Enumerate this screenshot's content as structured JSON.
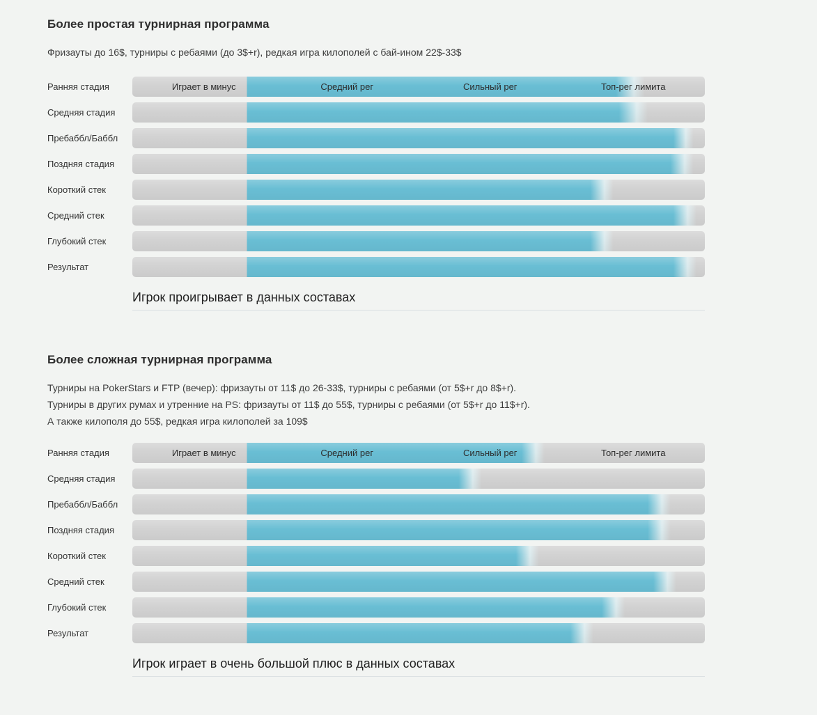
{
  "colors": {
    "fill": "#69bed4",
    "track": "#d2d2d2",
    "fade_mid": "#dcebee",
    "background": "#f2f4f2",
    "divider": "#dadfe2"
  },
  "chart_data": [
    {
      "type": "bar",
      "title": "Более простая турнирная программа",
      "subtitle_lines": [
        "Фризауты до 16$, турниры с ребаями (до 3$+r), редкая игра килополей с бай-ином 22$-33$"
      ],
      "scale_labels": [
        "Играет в минус",
        "Средний рег",
        "Сильный рег",
        "Топ-рег лимита"
      ],
      "categories": [
        "Ранняя стадия",
        "Средняя стадия",
        "Пребаббл/Баббл",
        "Поздняя стадия",
        "Короткий стек",
        "Средний стек",
        "Глубокий стек",
        "Результат"
      ],
      "xlim": [
        0,
        100
      ],
      "series": [
        {
          "name": "skill-range",
          "values": [
            {
              "from": 20,
              "to": 84.5,
              "fade_to": 89.5
            },
            {
              "from": 20,
              "to": 85,
              "fade_to": 90
            },
            {
              "from": 20,
              "to": 94.5,
              "fade_to": 98
            },
            {
              "from": 20,
              "to": 94,
              "fade_to": 98
            },
            {
              "from": 20,
              "to": 80,
              "fade_to": 84
            },
            {
              "from": 20,
              "to": 94.5,
              "fade_to": 98.5
            },
            {
              "from": 20,
              "to": 80,
              "fade_to": 84
            },
            {
              "from": 20,
              "to": 94.5,
              "fade_to": 98.5
            }
          ]
        }
      ],
      "caption": "Игрок проигрывает в данных составах"
    },
    {
      "type": "bar",
      "title": "Более сложная турнирная программа",
      "subtitle_lines": [
        "Турниры на PokerStars и FTP (вечер): фризауты от 11$ до 26-33$, турниры с ребаями (от 5$+r до 8$+r).",
        "Турниры в других румах и утренние на PS: фризауты от 11$ до 55$, турниры с ребаями (от 5$+r до 11$+r).",
        "А также килополя до 55$, редкая игра килополей за 109$"
      ],
      "scale_labels": [
        "Играет в минус",
        "Средний рег",
        "Сильный рег",
        "Топ-рег лимита"
      ],
      "categories": [
        "Ранняя стадия",
        "Средняя стадия",
        "Пребаббл/Баббл",
        "Поздняя стадия",
        "Короткий стек",
        "Средний стек",
        "Глубокий стек",
        "Результат"
      ],
      "xlim": [
        0,
        100
      ],
      "series": [
        {
          "name": "skill-range",
          "values": [
            {
              "from": 20,
              "to": 68,
              "fade_to": 72
            },
            {
              "from": 20,
              "to": 57,
              "fade_to": 61
            },
            {
              "from": 20,
              "to": 90,
              "fade_to": 94
            },
            {
              "from": 20,
              "to": 90,
              "fade_to": 94
            },
            {
              "from": 20,
              "to": 67,
              "fade_to": 71
            },
            {
              "from": 20,
              "to": 91,
              "fade_to": 95
            },
            {
              "from": 20,
              "to": 82,
              "fade_to": 86
            },
            {
              "from": 20,
              "to": 76.5,
              "fade_to": 80.5
            }
          ]
        }
      ],
      "caption": "Игрок играет в очень большой плюс в данных составах"
    }
  ]
}
